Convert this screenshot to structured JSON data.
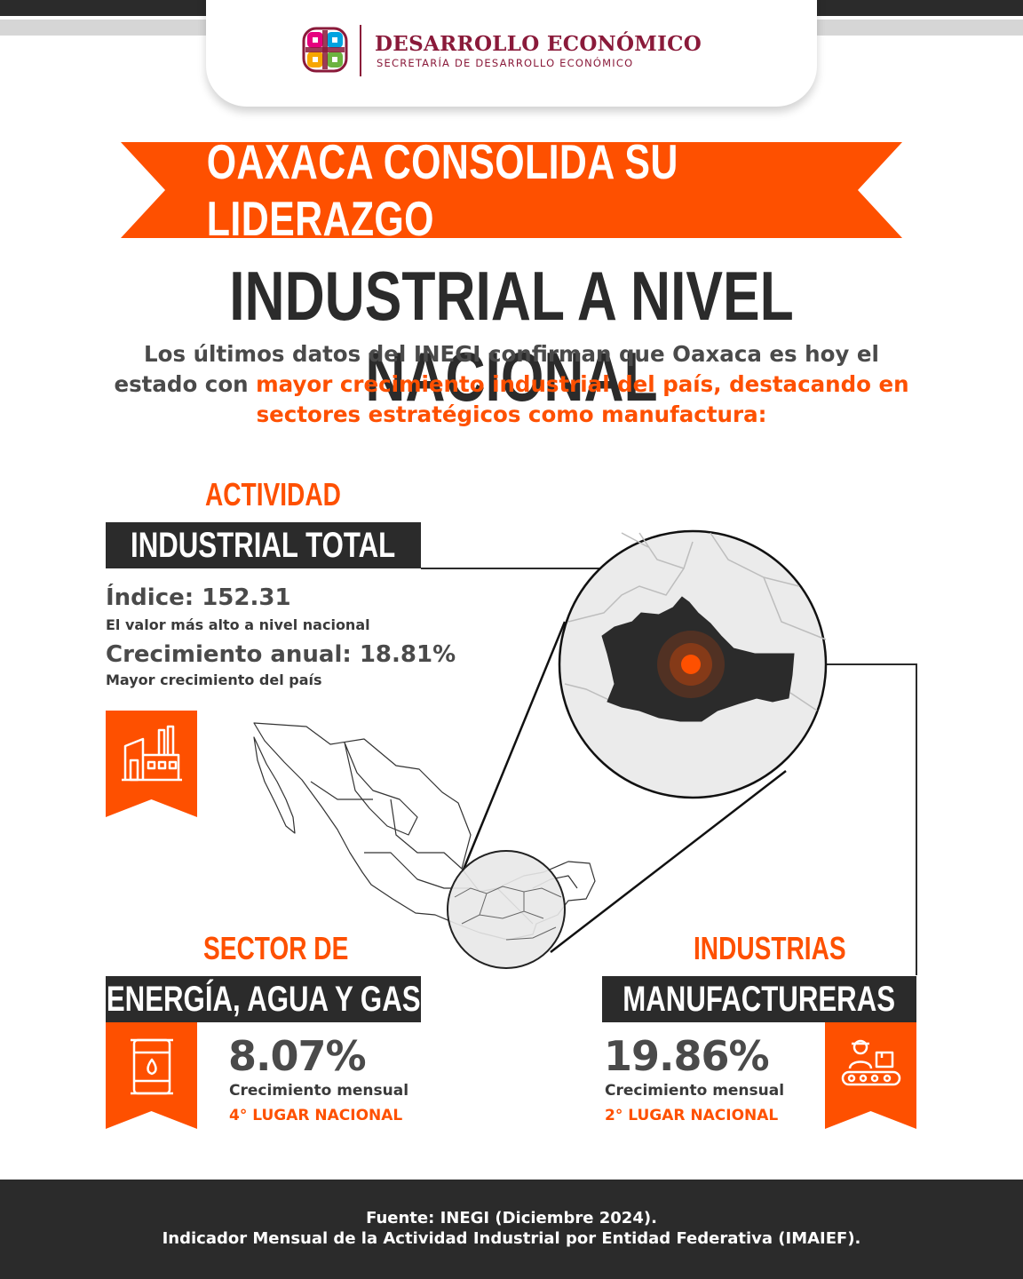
{
  "header": {
    "brand_title": "DESARROLLO ECONÓMICO",
    "brand_subtitle": "SECRETARÍA DE DESARROLLO ECONÓMICO",
    "logo_icon": "state-emblem-icon"
  },
  "headline": {
    "ribbon_text": "OAXACA CONSOLIDA SU LIDERAZGO",
    "line2": "INDUSTRIAL A NIVEL NACIONAL"
  },
  "intro": {
    "part1": "Los últimos datos del INEGI confirman que Oaxaca es hoy el estado con ",
    "highlight": "mayor crecimiento industrial del país, destacando en sectores estratégicos como manufactura:"
  },
  "industrial_total": {
    "label_top": "ACTIVIDAD",
    "label_box": "INDUSTRIAL TOTAL",
    "index_line": "Índice: 152.31",
    "index_note": "El valor más alto a nivel nacional",
    "growth_line": "Crecimiento anual: 18.81%",
    "growth_note": "Mayor crecimiento del país",
    "icon": "factory-icon"
  },
  "energy": {
    "label_top": "SECTOR DE",
    "label_box": "ENERGÍA, AGUA Y GAS",
    "percent": "8.07%",
    "note": "Crecimiento mensual",
    "rank": "4° LUGAR NACIONAL",
    "icon": "oil-barrel-icon"
  },
  "manufacturing": {
    "label_top": "INDUSTRIAS",
    "label_box": "MANUFACTURERAS",
    "percent": "19.86%",
    "note": "Crecimiento mensual",
    "rank": "2° LUGAR NACIONAL",
    "icon": "worker-conveyor-icon"
  },
  "map": {
    "country_icon": "mexico-map-icon",
    "state_icon": "oaxaca-map-icon",
    "marker_icon": "location-pulse-icon"
  },
  "footer": {
    "line1": "Fuente: INEGI (Diciembre 2024).",
    "line2": "Indicador Mensual de la Actividad Industrial por Entidad Federativa (IMAIEF)."
  },
  "colors": {
    "accent": "#fe5000",
    "dark": "#2b2b2b",
    "brand": "#8a1a3a"
  }
}
